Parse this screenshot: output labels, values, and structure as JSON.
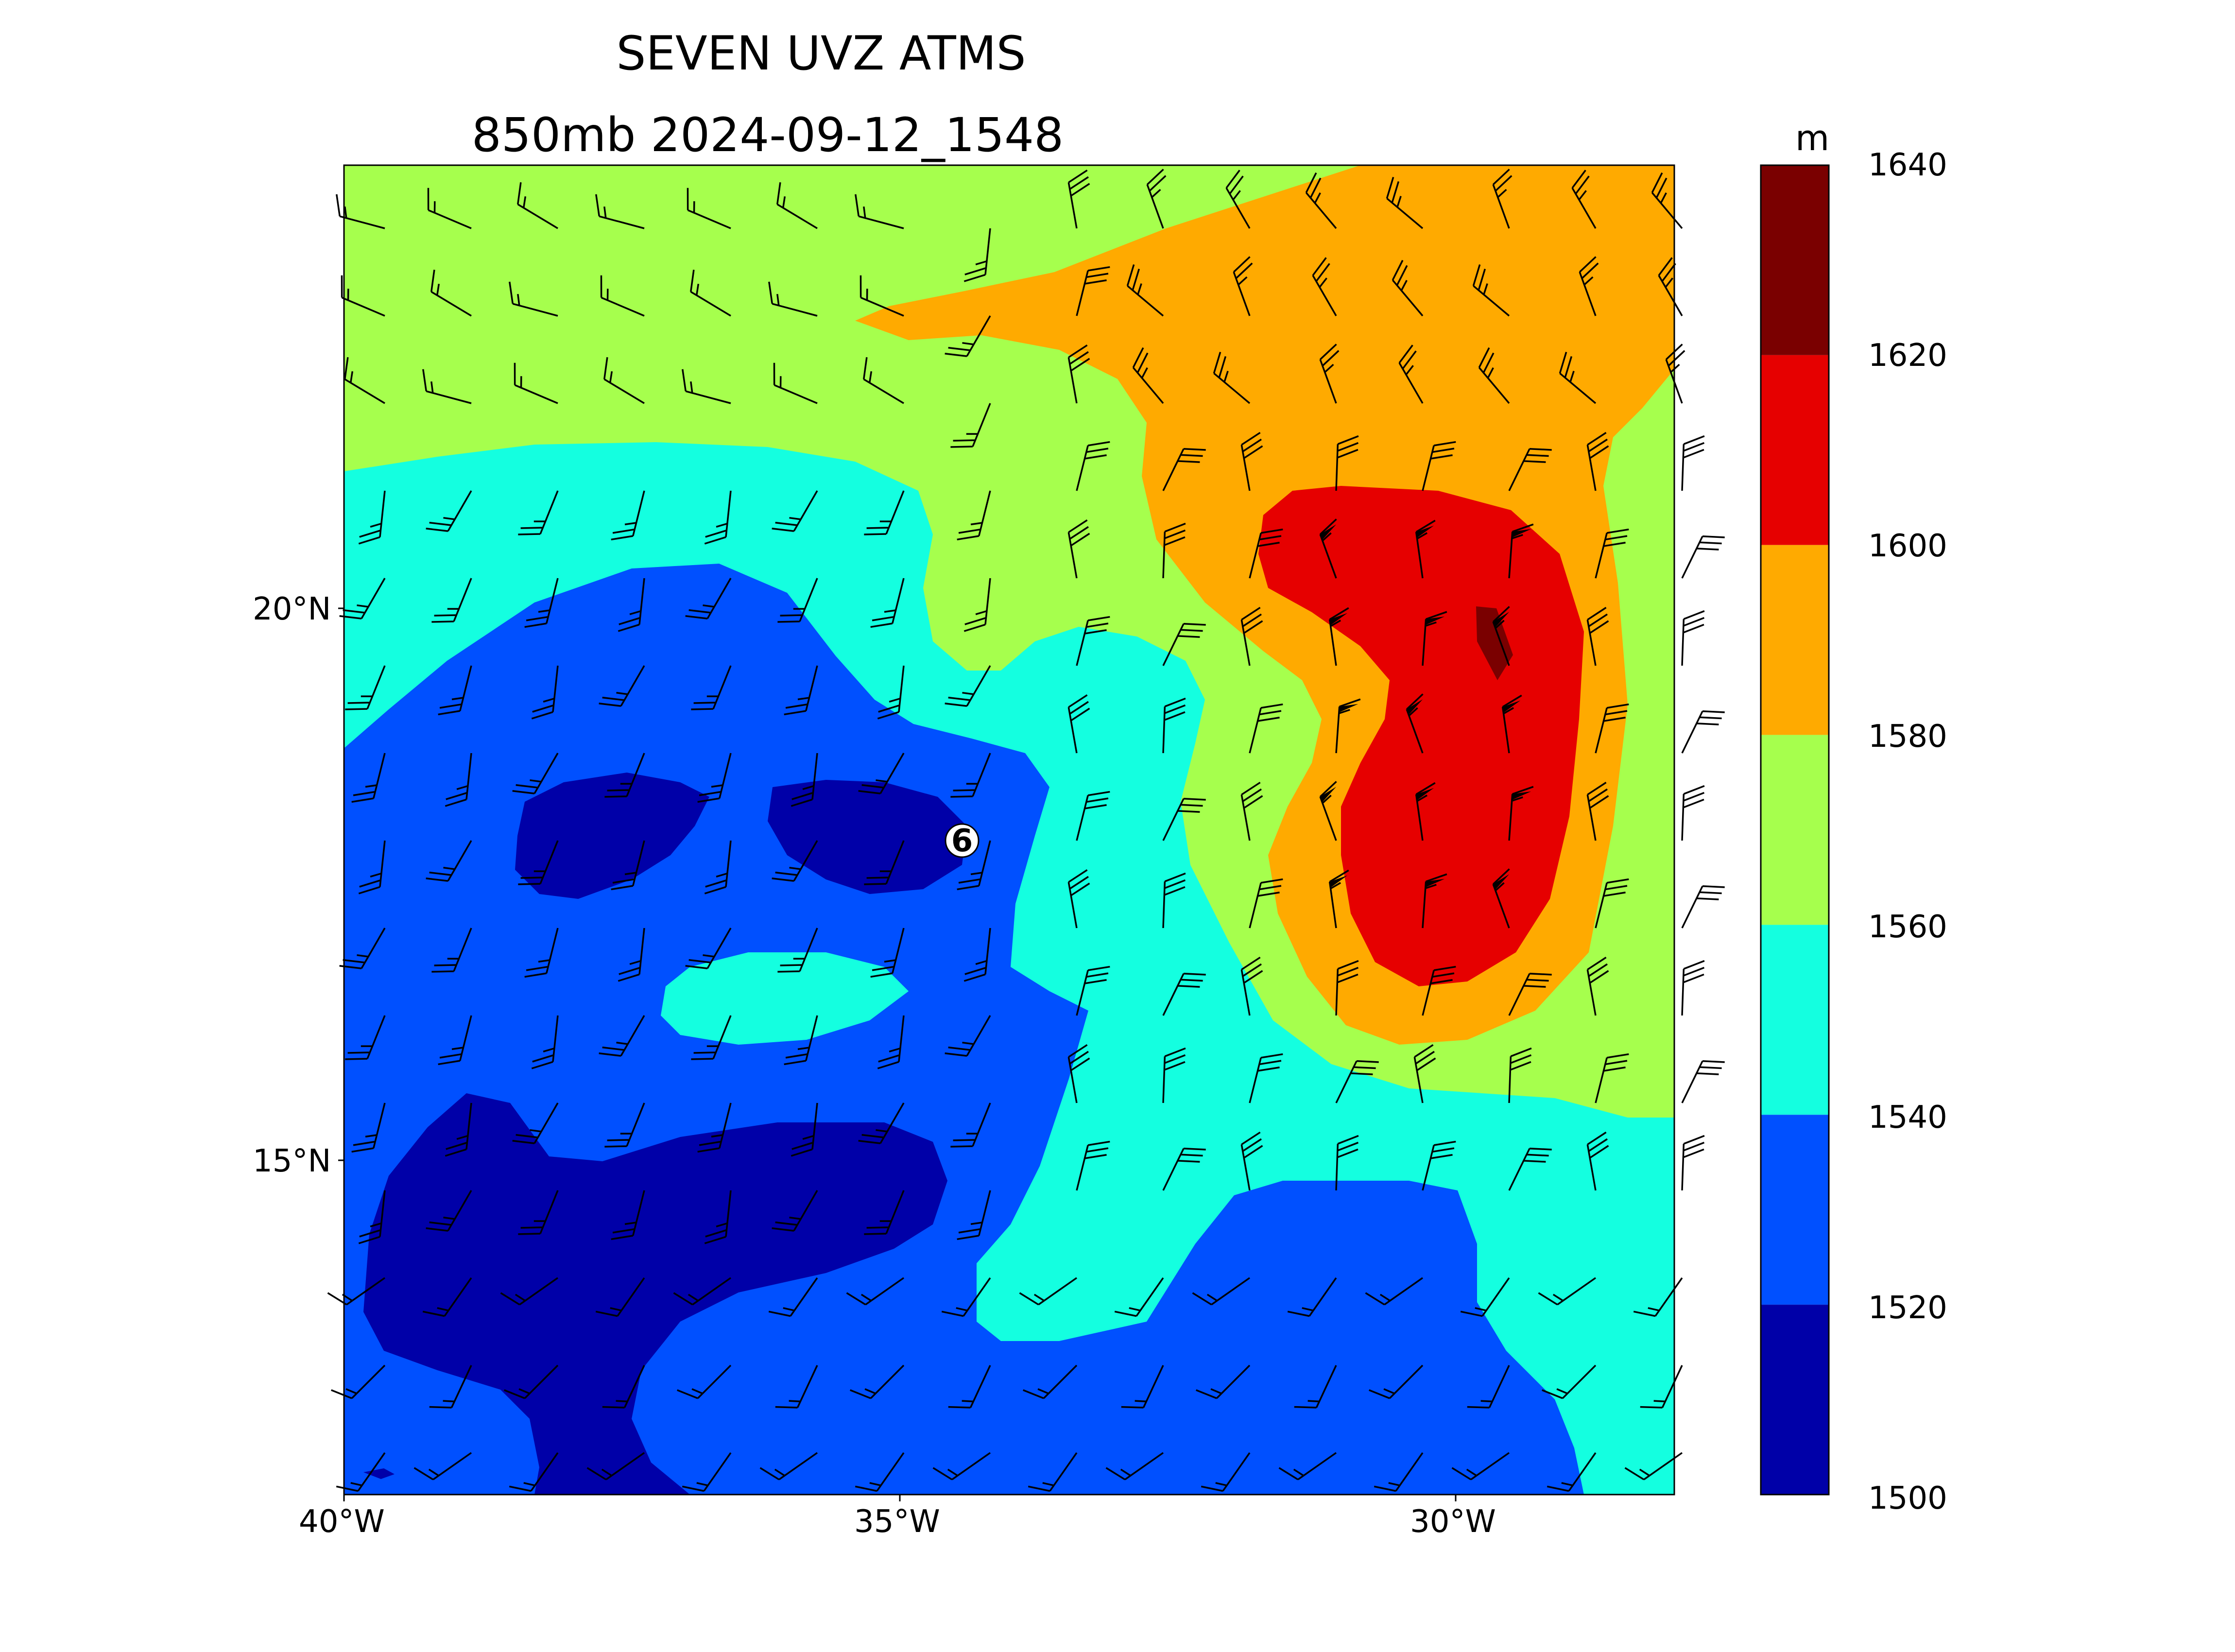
{
  "title": "SEVEN UVZ ATMS",
  "subtitle": "850mb 2024-09-12_1548",
  "colorbar": {
    "unit": "m",
    "levels": [
      "1640",
      "1620",
      "1600",
      "1580",
      "1560",
      "1540",
      "1520",
      "1500"
    ],
    "colors": [
      "#7a0000",
      "#e60000",
      "#ffaa00",
      "#a6ff4d",
      "#14ffe0",
      "#0050ff",
      "#0000a8"
    ]
  },
  "axes": {
    "x_ticks": [
      "40°W",
      "35°W",
      "30°W"
    ],
    "y_ticks": [
      "20°N",
      "15°N"
    ]
  },
  "storm_marker": {
    "symbol": "6",
    "lon": -34.4,
    "lat": 17.9
  },
  "chart_data": {
    "type": "heatmap",
    "field": "850mb geopotential height (filled contours) with wind barbs",
    "unit": "m",
    "contour_levels": [
      1500,
      1520,
      1540,
      1560,
      1580,
      1600,
      1620,
      1640
    ],
    "lon_range": [
      -40,
      -28
    ],
    "lat_range": [
      12,
      24
    ],
    "features": [
      {
        "value": "1600-1620",
        "lon": -30.3,
        "lat": 18.6
      },
      {
        "value": "1620-1640",
        "lon": -29.7,
        "lat": 19.9
      },
      {
        "value": "1500-1520",
        "lon": -37.6,
        "lat": 18.0
      },
      {
        "value": "1500-1520",
        "lon": -35.3,
        "lat": 18.0
      },
      {
        "value": "1500-1520",
        "lon": -37.5,
        "lat": 14.2
      },
      {
        "value": "1540-1560",
        "lon": -35.9,
        "lat": 16.4
      }
    ]
  }
}
